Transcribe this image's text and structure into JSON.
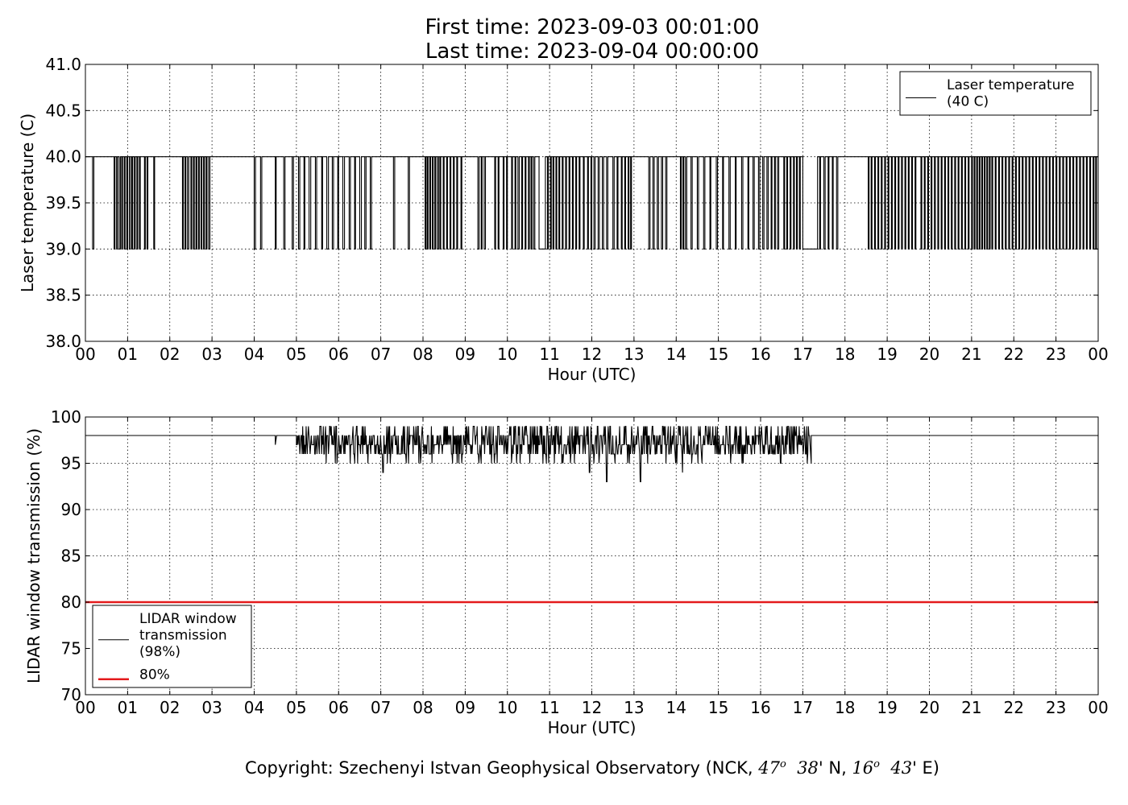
{
  "title": {
    "line1": "First time: 2023-09-03 00:01:00",
    "line2": "Last time: 2023-09-04 00:00:00"
  },
  "copyright": {
    "prefix": "Copyright: Szechenyi Istvan Geophysical Observatory (NCK, ",
    "lat_deg": "47",
    "deg_mark": "o",
    "lat_min": "38",
    "lat_suffix": "' N, ",
    "lon_deg": "16",
    "lon_min": "43",
    "lon_suffix": "' E)"
  },
  "chart_data": [
    {
      "type": "line",
      "title": "",
      "xlabel": "Hour (UTC)",
      "ylabel": "Laser temperature (C)",
      "xlim": [
        0,
        24
      ],
      "ylim": [
        38.0,
        41.0
      ],
      "xticks": [
        "00",
        "01",
        "02",
        "03",
        "04",
        "05",
        "06",
        "07",
        "08",
        "09",
        "10",
        "11",
        "12",
        "13",
        "14",
        "15",
        "16",
        "17",
        "18",
        "19",
        "20",
        "21",
        "22",
        "23",
        "00"
      ],
      "yticks": [
        "38.0",
        "38.5",
        "39.0",
        "39.5",
        "40.0",
        "40.5",
        "41.0"
      ],
      "grid": true,
      "legend_position": "top-right",
      "legend": [
        "Laser temperature\n(40 C)"
      ],
      "series": [
        {
          "name": "Laser temperature\n(40 C)",
          "color": "#000000",
          "baseline": 40.0,
          "low_value": 39.0,
          "dips": [
            [
              0.17,
              0.2
            ],
            [
              0.68,
              0.7
            ],
            [
              0.74,
              0.76
            ],
            [
              0.8,
              0.83
            ],
            [
              0.86,
              0.88
            ],
            [
              0.92,
              0.94
            ],
            [
              0.98,
              1.0
            ],
            [
              1.04,
              1.07
            ],
            [
              1.1,
              1.12
            ],
            [
              1.16,
              1.18
            ],
            [
              1.22,
              1.24
            ],
            [
              1.28,
              1.3
            ],
            [
              1.4,
              1.42
            ],
            [
              1.46,
              1.48
            ],
            [
              1.62,
              1.64
            ],
            [
              2.3,
              2.32
            ],
            [
              2.36,
              2.38
            ],
            [
              2.42,
              2.45
            ],
            [
              2.5,
              2.52
            ],
            [
              2.56,
              2.58
            ],
            [
              2.62,
              2.64
            ],
            [
              2.68,
              2.7
            ],
            [
              2.74,
              2.76
            ],
            [
              2.8,
              2.82
            ],
            [
              2.86,
              2.88
            ],
            [
              2.92,
              2.95
            ],
            [
              4.0,
              4.03
            ],
            [
              4.15,
              4.18
            ],
            [
              4.5,
              4.52
            ],
            [
              4.7,
              4.73
            ],
            [
              4.9,
              4.93
            ],
            [
              5.05,
              5.08
            ],
            [
              5.18,
              5.2
            ],
            [
              5.3,
              5.34
            ],
            [
              5.45,
              5.48
            ],
            [
              5.6,
              5.62
            ],
            [
              5.72,
              5.76
            ],
            [
              5.85,
              5.88
            ],
            [
              5.98,
              6.0
            ],
            [
              6.1,
              6.14
            ],
            [
              6.25,
              6.28
            ],
            [
              6.38,
              6.4
            ],
            [
              6.5,
              6.54
            ],
            [
              6.62,
              6.65
            ],
            [
              6.75,
              6.78
            ],
            [
              7.3,
              7.33
            ],
            [
              7.65,
              7.68
            ],
            [
              8.05,
              8.07
            ],
            [
              8.1,
              8.12
            ],
            [
              8.16,
              8.18
            ],
            [
              8.22,
              8.24
            ],
            [
              8.28,
              8.3
            ],
            [
              8.34,
              8.37
            ],
            [
              8.4,
              8.42
            ],
            [
              8.48,
              8.5
            ],
            [
              8.56,
              8.58
            ],
            [
              8.64,
              8.66
            ],
            [
              8.72,
              8.74
            ],
            [
              8.8,
              8.82
            ],
            [
              8.9,
              8.92
            ],
            [
              9.3,
              9.33
            ],
            [
              9.38,
              9.4
            ],
            [
              9.45,
              9.48
            ],
            [
              9.7,
              9.72
            ],
            [
              9.78,
              9.8
            ],
            [
              9.9,
              9.92
            ],
            [
              9.98,
              10.0
            ],
            [
              10.1,
              10.12
            ],
            [
              10.18,
              10.2
            ],
            [
              10.25,
              10.28
            ],
            [
              10.34,
              10.36
            ],
            [
              10.42,
              10.44
            ],
            [
              10.5,
              10.52
            ],
            [
              10.56,
              10.58
            ],
            [
              10.62,
              10.65
            ],
            [
              10.75,
              10.9
            ],
            [
              10.95,
              10.97
            ],
            [
              11.02,
              11.04
            ],
            [
              11.08,
              11.1
            ],
            [
              11.15,
              11.17
            ],
            [
              11.22,
              11.24
            ],
            [
              11.3,
              11.32
            ],
            [
              11.38,
              11.4
            ],
            [
              11.46,
              11.48
            ],
            [
              11.54,
              11.56
            ],
            [
              11.62,
              11.64
            ],
            [
              11.7,
              11.72
            ],
            [
              11.8,
              11.82
            ],
            [
              11.9,
              11.92
            ],
            [
              11.98,
              12.0
            ],
            [
              12.05,
              12.08
            ],
            [
              12.15,
              12.18
            ],
            [
              12.25,
              12.28
            ],
            [
              12.35,
              12.38
            ],
            [
              12.5,
              12.53
            ],
            [
              12.6,
              12.62
            ],
            [
              12.7,
              12.72
            ],
            [
              12.78,
              12.8
            ],
            [
              12.86,
              12.88
            ],
            [
              12.92,
              12.94
            ],
            [
              13.35,
              13.38
            ],
            [
              13.45,
              13.48
            ],
            [
              13.55,
              13.58
            ],
            [
              13.65,
              13.68
            ],
            [
              13.75,
              13.78
            ],
            [
              14.1,
              14.12
            ],
            [
              14.16,
              14.18
            ],
            [
              14.22,
              14.25
            ],
            [
              14.35,
              14.38
            ],
            [
              14.5,
              14.53
            ],
            [
              14.65,
              14.68
            ],
            [
              14.8,
              14.82
            ],
            [
              14.95,
              14.98
            ],
            [
              15.1,
              15.12
            ],
            [
              15.25,
              15.28
            ],
            [
              15.4,
              15.42
            ],
            [
              15.55,
              15.58
            ],
            [
              15.7,
              15.72
            ],
            [
              15.82,
              15.85
            ],
            [
              15.95,
              15.98
            ],
            [
              16.05,
              16.08
            ],
            [
              16.15,
              16.18
            ],
            [
              16.25,
              16.27
            ],
            [
              16.33,
              16.35
            ],
            [
              16.4,
              16.43
            ],
            [
              16.55,
              16.57
            ],
            [
              16.62,
              16.64
            ],
            [
              16.7,
              16.72
            ],
            [
              16.78,
              16.8
            ],
            [
              16.85,
              16.87
            ],
            [
              16.92,
              16.94
            ],
            [
              17.0,
              17.35
            ],
            [
              17.4,
              17.42
            ],
            [
              17.5,
              17.53
            ],
            [
              17.6,
              17.62
            ],
            [
              17.7,
              17.72
            ],
            [
              17.8,
              17.83
            ],
            [
              18.55,
              18.57
            ],
            [
              18.62,
              18.64
            ],
            [
              18.7,
              18.72
            ],
            [
              18.78,
              18.8
            ],
            [
              18.86,
              18.88
            ],
            [
              18.94,
              18.96
            ],
            [
              19.02,
              19.04
            ],
            [
              19.1,
              19.12
            ],
            [
              19.18,
              19.2
            ],
            [
              19.26,
              19.28
            ],
            [
              19.34,
              19.36
            ],
            [
              19.42,
              19.44
            ],
            [
              19.5,
              19.52
            ],
            [
              19.58,
              19.6
            ],
            [
              19.66,
              19.68
            ],
            [
              19.8,
              19.82
            ],
            [
              19.88,
              19.9
            ],
            [
              19.96,
              19.98
            ],
            [
              20.04,
              20.06
            ],
            [
              20.12,
              20.14
            ],
            [
              20.2,
              20.22
            ],
            [
              20.28,
              20.3
            ],
            [
              20.36,
              20.38
            ],
            [
              20.44,
              20.46
            ],
            [
              20.52,
              20.54
            ],
            [
              20.6,
              20.62
            ],
            [
              20.68,
              20.7
            ],
            [
              20.76,
              20.78
            ],
            [
              20.84,
              20.86
            ],
            [
              20.92,
              20.94
            ],
            [
              21.0,
              21.02
            ],
            [
              21.06,
              21.08
            ],
            [
              21.12,
              21.14
            ],
            [
              21.18,
              21.2
            ],
            [
              21.24,
              21.26
            ],
            [
              21.3,
              21.32
            ],
            [
              21.36,
              21.38
            ],
            [
              21.42,
              21.44
            ],
            [
              21.48,
              21.5
            ],
            [
              21.56,
              21.58
            ],
            [
              21.64,
              21.66
            ],
            [
              21.72,
              21.74
            ],
            [
              21.8,
              21.82
            ],
            [
              21.88,
              21.9
            ],
            [
              21.96,
              21.98
            ],
            [
              22.04,
              22.06
            ],
            [
              22.12,
              22.14
            ],
            [
              22.2,
              22.22
            ],
            [
              22.28,
              22.3
            ],
            [
              22.36,
              22.38
            ],
            [
              22.44,
              22.46
            ],
            [
              22.52,
              22.54
            ],
            [
              22.6,
              22.62
            ],
            [
              22.68,
              22.7
            ],
            [
              22.76,
              22.78
            ],
            [
              22.84,
              22.86
            ],
            [
              22.92,
              22.94
            ],
            [
              23.0,
              23.02
            ],
            [
              23.08,
              23.1
            ],
            [
              23.16,
              23.18
            ],
            [
              23.24,
              23.26
            ],
            [
              23.32,
              23.34
            ],
            [
              23.4,
              23.42
            ],
            [
              23.48,
              23.5
            ],
            [
              23.56,
              23.58
            ],
            [
              23.64,
              23.66
            ],
            [
              23.72,
              23.74
            ],
            [
              23.8,
              23.82
            ],
            [
              23.88,
              23.9
            ],
            [
              23.94,
              23.96
            ]
          ]
        }
      ]
    },
    {
      "type": "line",
      "title": "",
      "xlabel": "Hour (UTC)",
      "ylabel": "LIDAR window transmission (%)",
      "xlim": [
        0,
        24
      ],
      "ylim": [
        70,
        100
      ],
      "xticks": [
        "00",
        "01",
        "02",
        "03",
        "04",
        "05",
        "06",
        "07",
        "08",
        "09",
        "10",
        "11",
        "12",
        "13",
        "14",
        "15",
        "16",
        "17",
        "18",
        "19",
        "20",
        "21",
        "22",
        "23",
        "00"
      ],
      "yticks": [
        "70",
        "75",
        "80",
        "85",
        "90",
        "95",
        "100"
      ],
      "grid": true,
      "legend_position": "lower-left",
      "legend": [
        "LIDAR window\ntransmission\n(98%)",
        "80%"
      ],
      "series": [
        {
          "name": "LIDAR window\ntransmission\n(98%)",
          "color": "#000000",
          "baseline": 98,
          "noisy_segment": {
            "x_start": 5.0,
            "x_end": 17.2,
            "min": 93,
            "max": 99
          },
          "isolated_dips": [
            [
              4.5,
              97
            ],
            [
              5.0,
              97
            ],
            [
              7.05,
              94
            ],
            [
              11.95,
              94
            ],
            [
              12.35,
              93
            ],
            [
              13.15,
              93
            ],
            [
              14.15,
              94
            ]
          ]
        },
        {
          "name": "80%",
          "color": "#e41a1c",
          "values": [
            [
              0,
              80
            ],
            [
              24,
              80
            ]
          ]
        }
      ]
    }
  ]
}
